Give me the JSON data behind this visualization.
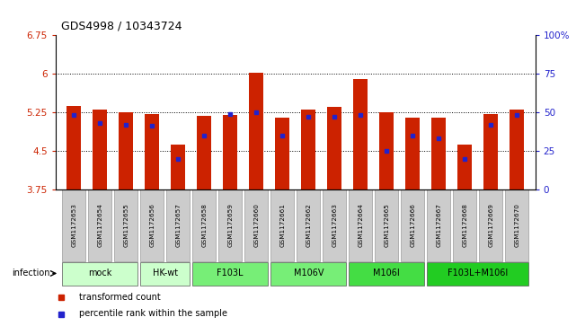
{
  "title": "GDS4998 / 10343724",
  "samples": [
    "GSM1172653",
    "GSM1172654",
    "GSM1172655",
    "GSM1172656",
    "GSM1172657",
    "GSM1172658",
    "GSM1172659",
    "GSM1172660",
    "GSM1172661",
    "GSM1172662",
    "GSM1172663",
    "GSM1172664",
    "GSM1172665",
    "GSM1172666",
    "GSM1172667",
    "GSM1172668",
    "GSM1172669",
    "GSM1172670"
  ],
  "transformed_counts": [
    5.38,
    5.3,
    5.25,
    5.22,
    4.62,
    5.18,
    5.2,
    6.01,
    5.15,
    5.3,
    5.35,
    5.9,
    5.25,
    5.15,
    5.15,
    4.62,
    5.22,
    5.3
  ],
  "percentile_ranks": [
    48,
    43,
    42,
    41,
    20,
    35,
    49,
    50,
    35,
    47,
    47,
    48,
    25,
    35,
    33,
    20,
    42,
    48
  ],
  "group_defs": [
    {
      "start": 0,
      "end": 2,
      "label": "mock",
      "color": "#ccffcc"
    },
    {
      "start": 3,
      "end": 4,
      "label": "HK-wt",
      "color": "#ccffcc"
    },
    {
      "start": 5,
      "end": 7,
      "label": "F103L",
      "color": "#77ee77"
    },
    {
      "start": 8,
      "end": 10,
      "label": "M106V",
      "color": "#77ee77"
    },
    {
      "start": 11,
      "end": 13,
      "label": "M106I",
      "color": "#44dd44"
    },
    {
      "start": 14,
      "end": 17,
      "label": "F103L+M106I",
      "color": "#22cc22"
    }
  ],
  "ylim": [
    3.75,
    6.75
  ],
  "yticks_left": [
    3.75,
    4.5,
    5.25,
    6.0,
    6.75
  ],
  "ytick_labels_left": [
    "3.75",
    "4.5",
    "5.25",
    "6",
    "6.75"
  ],
  "yticks_right_pct": [
    0,
    25,
    50,
    75,
    100
  ],
  "ytick_labels_right": [
    "0",
    "25",
    "50",
    "75",
    "100%"
  ],
  "bar_color": "#cc2200",
  "dot_color": "#2222cc",
  "base_value": 3.75,
  "bar_width": 0.55,
  "infection_label": "infection",
  "legend_items": [
    {
      "color": "#cc2200",
      "label": "transformed count"
    },
    {
      "color": "#2222cc",
      "label": "percentile rank within the sample"
    }
  ],
  "sample_label_bg": "#cccccc",
  "gridline_yticks": [
    4.5,
    5.25,
    6.0
  ]
}
